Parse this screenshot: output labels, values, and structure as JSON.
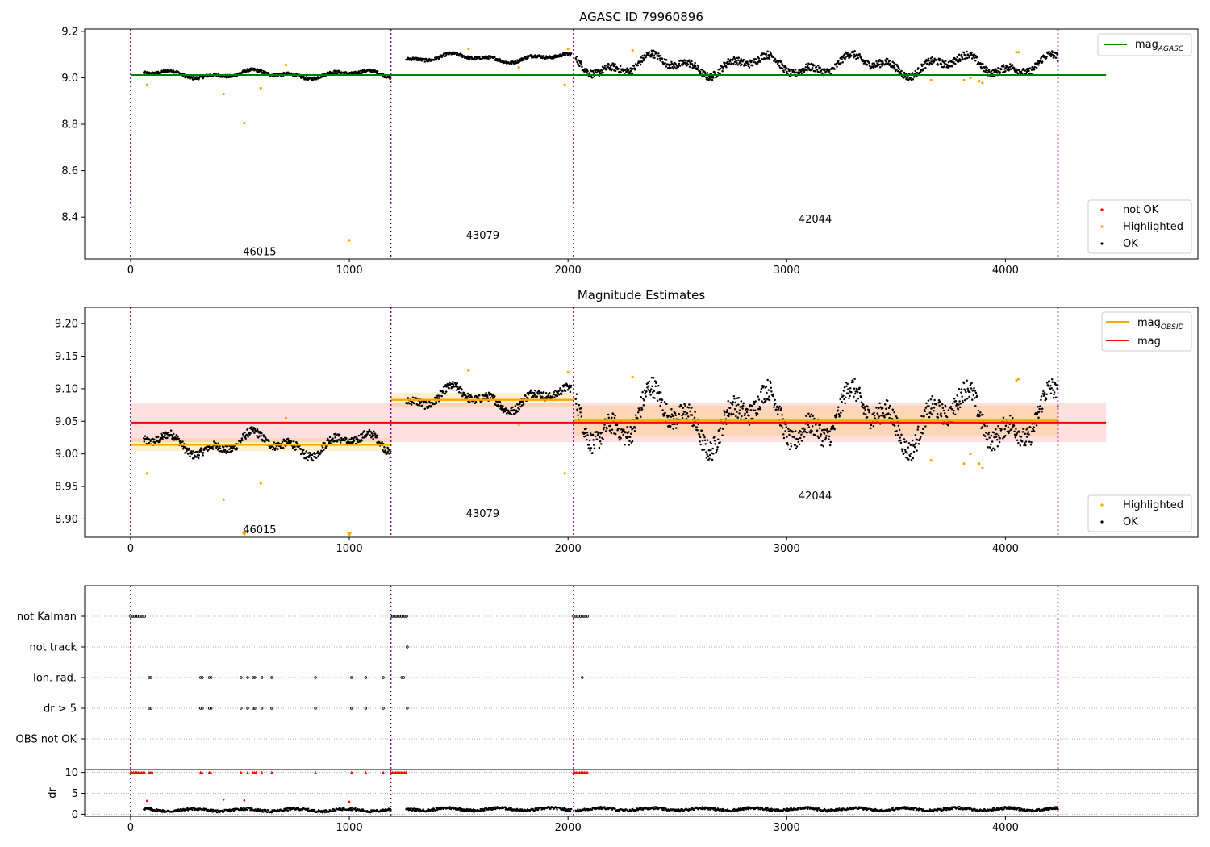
{
  "chart_data": [
    {
      "type": "scatter",
      "title": "AGASC ID 79960896",
      "xlabel": "",
      "ylabel": "",
      "xlim": [
        -210,
        4880
      ],
      "ylim": [
        8.22,
        9.21
      ],
      "x_ticks": [
        0,
        1000,
        2000,
        3000,
        4000
      ],
      "y_ticks": [
        8.4,
        8.6,
        8.8,
        9.0,
        9.2
      ],
      "x_tick_labels": [
        "0",
        "1000",
        "2000",
        "3000",
        "4000"
      ],
      "y_tick_labels": [
        "8.4",
        "8.6",
        "8.8",
        "9.0",
        "9.2"
      ],
      "grid": false,
      "obs_boundaries": [
        0,
        1190,
        2025,
        4240
      ],
      "obs_labels": [
        {
          "text": "46015",
          "x": 590,
          "y": 8.25
        },
        {
          "text": "43079",
          "x": 1610,
          "y": 8.32
        },
        {
          "text": "42044",
          "x": 3130,
          "y": 8.39
        }
      ],
      "lines": [
        {
          "name": "mag_AGASC",
          "color": "#008000",
          "x": [
            0,
            4460
          ],
          "y": [
            9.012,
            9.012
          ]
        }
      ],
      "segments": [
        {
          "x_start": 60,
          "x_end": 1190,
          "mean": 9.015,
          "amp": 0.012
        },
        {
          "x_start": 1260,
          "x_end": 2015,
          "mean": 9.085,
          "amp": 0.012
        },
        {
          "x_start": 2035,
          "x_end": 4240,
          "mean": 9.055,
          "amp": 0.03
        }
      ],
      "highlighted": [
        [
          75,
          8.97
        ],
        [
          425,
          8.93
        ],
        [
          520,
          8.805
        ],
        [
          595,
          8.955
        ],
        [
          710,
          9.055
        ],
        [
          1000,
          8.3
        ],
        [
          1545,
          9.125
        ],
        [
          1775,
          9.045
        ],
        [
          1985,
          8.97
        ],
        [
          2000,
          9.125
        ],
        [
          2295,
          9.118
        ],
        [
          3660,
          8.99
        ],
        [
          3810,
          8.99
        ],
        [
          3840,
          9.0
        ],
        [
          3880,
          8.985
        ],
        [
          3895,
          8.978
        ],
        [
          4050,
          9.11
        ],
        [
          4060,
          9.11
        ]
      ],
      "legend_lines": {
        "label": "mag",
        "subscript": "AGASC"
      },
      "legend_points": [
        "not OK",
        "Highlighted",
        "OK"
      ],
      "legend_colors": {
        "not_ok": "#ff0000",
        "highlighted": "#ffa500",
        "ok": "#000000"
      }
    },
    {
      "type": "scatter",
      "title": "Magnitude Estimates",
      "xlabel": "",
      "ylabel": "",
      "xlim": [
        -210,
        4880
      ],
      "ylim": [
        8.872,
        9.225
      ],
      "x_ticks": [
        0,
        1000,
        2000,
        3000,
        4000
      ],
      "y_ticks": [
        8.9,
        8.95,
        9.0,
        9.05,
        9.1,
        9.15,
        9.2
      ],
      "x_tick_labels": [
        "0",
        "1000",
        "2000",
        "3000",
        "4000"
      ],
      "y_tick_labels": [
        "8.90",
        "8.95",
        "9.00",
        "9.05",
        "9.10",
        "9.15",
        "9.20"
      ],
      "grid": false,
      "obs_boundaries": [
        0,
        1190,
        2025,
        4240
      ],
      "obs_labels": [
        {
          "text": "46015",
          "x": 590,
          "y": 8.883
        },
        {
          "text": "43079",
          "x": 1610,
          "y": 8.908
        },
        {
          "text": "42044",
          "x": 3130,
          "y": 8.935
        }
      ],
      "mag": {
        "value": 9.048,
        "band": [
          9.018,
          9.078
        ],
        "x": [
          0,
          4460
        ],
        "color": "#ff0000"
      },
      "mag_obsid": [
        {
          "x": [
            0,
            1190
          ],
          "value": 9.014,
          "band": [
            9.004,
            9.024
          ]
        },
        {
          "x": [
            1190,
            2025
          ],
          "value": 9.083,
          "band": [
            9.072,
            9.094
          ]
        },
        {
          "x": [
            2025,
            4240
          ],
          "value": 9.051,
          "band": [
            9.028,
            9.074
          ]
        }
      ],
      "segments": [
        {
          "x_start": 60,
          "x_end": 1190,
          "mean": 9.015,
          "amp": 0.012
        },
        {
          "x_start": 1260,
          "x_end": 2015,
          "mean": 9.085,
          "amp": 0.012
        },
        {
          "x_start": 2035,
          "x_end": 4240,
          "mean": 9.055,
          "amp": 0.03
        }
      ],
      "highlighted": [
        [
          75,
          8.97
        ],
        [
          425,
          8.93
        ],
        [
          595,
          8.955
        ],
        [
          710,
          9.055
        ],
        [
          1545,
          9.128
        ],
        [
          1775,
          9.045
        ],
        [
          1985,
          8.97
        ],
        [
          2000,
          9.125
        ],
        [
          2295,
          9.118
        ],
        [
          3660,
          8.99
        ],
        [
          3810,
          8.985
        ],
        [
          3840,
          9.0
        ],
        [
          3880,
          8.985
        ],
        [
          3895,
          8.978
        ],
        [
          4050,
          9.113
        ],
        [
          4060,
          9.115
        ]
      ],
      "offscale_markers": [
        520,
        1000
      ],
      "legend_lines": [
        {
          "label": "mag",
          "subscript": "OBSID",
          "color": "#ffa500"
        },
        {
          "label": "mag",
          "color": "#ff0000"
        }
      ],
      "legend_points": [
        "Highlighted",
        "OK"
      ],
      "legend_colors": {
        "highlighted": "#ffa500",
        "ok": "#000000"
      }
    },
    {
      "type": "scatter",
      "title": "",
      "xlabel": "",
      "ylabel": "",
      "xlim": [
        -210,
        4880
      ],
      "categories": [
        "not Kalman",
        "not track",
        "Ion. rad.",
        "dr > 5",
        "OBS not OK"
      ],
      "obs_boundaries": [
        0,
        1190,
        2025,
        4240
      ],
      "grid": true,
      "flags": {
        "not Kalman": [
          [
            0,
            65
          ],
          [
            1190,
            1265
          ],
          [
            2025,
            2090
          ]
        ],
        "not track": [
          [
            1265,
            1265
          ]
        ],
        "Ion. rad.": [
          [
            85,
            100
          ],
          [
            320,
            330
          ],
          [
            360,
            370
          ],
          [
            505,
            505
          ],
          [
            535,
            535
          ],
          [
            560,
            575
          ],
          [
            600,
            605
          ],
          [
            645,
            645
          ],
          [
            845,
            845
          ],
          [
            1010,
            1010
          ],
          [
            1075,
            1075
          ],
          [
            1155,
            1155
          ],
          [
            1240,
            1250
          ],
          [
            2065,
            2065
          ]
        ],
        "dr > 5": [
          [
            85,
            100
          ],
          [
            320,
            330
          ],
          [
            360,
            370
          ],
          [
            505,
            505
          ],
          [
            535,
            535
          ],
          [
            560,
            575
          ],
          [
            600,
            605
          ],
          [
            645,
            645
          ],
          [
            845,
            845
          ],
          [
            1010,
            1010
          ],
          [
            1075,
            1075
          ],
          [
            1155,
            1155
          ],
          [
            1265,
            1265
          ]
        ],
        "OBS not OK": []
      }
    },
    {
      "type": "scatter",
      "title": "",
      "xlabel": "",
      "ylabel": "dr",
      "xlim": [
        -210,
        4880
      ],
      "ylim": [
        -0.5,
        10.7
      ],
      "y_ticks": [
        0,
        5,
        10
      ],
      "y_tick_labels": [
        "0",
        "5",
        "10"
      ],
      "x_ticks": [
        0,
        1000,
        2000,
        3000,
        4000
      ],
      "x_tick_labels": [
        "0",
        "1000",
        "2000",
        "3000",
        "4000"
      ],
      "grid": true,
      "obs_boundaries": [
        0,
        1190,
        2025,
        4240
      ],
      "cap_value": 10,
      "red_flagged_ranges": [
        [
          0,
          65
        ],
        [
          85,
          100
        ],
        [
          320,
          330
        ],
        [
          360,
          370
        ],
        [
          505,
          505
        ],
        [
          535,
          535
        ],
        [
          560,
          575
        ],
        [
          600,
          605
        ],
        [
          645,
          645
        ],
        [
          845,
          845
        ],
        [
          1010,
          1010
        ],
        [
          1075,
          1075
        ],
        [
          1155,
          1155
        ],
        [
          1190,
          1265
        ],
        [
          2025,
          2090
        ]
      ],
      "red_scattered": [
        [
          75,
          3.2
        ],
        [
          425,
          3.5
        ],
        [
          520,
          3.3
        ],
        [
          1000,
          3.0
        ]
      ],
      "segments": [
        {
          "x_start": 60,
          "x_end": 1190,
          "mean": 1.0,
          "amp": 0.6
        },
        {
          "x_start": 1260,
          "x_end": 2015,
          "mean": 1.2,
          "amp": 0.6
        },
        {
          "x_start": 2035,
          "x_end": 4240,
          "mean": 1.2,
          "amp": 0.6
        }
      ]
    }
  ]
}
